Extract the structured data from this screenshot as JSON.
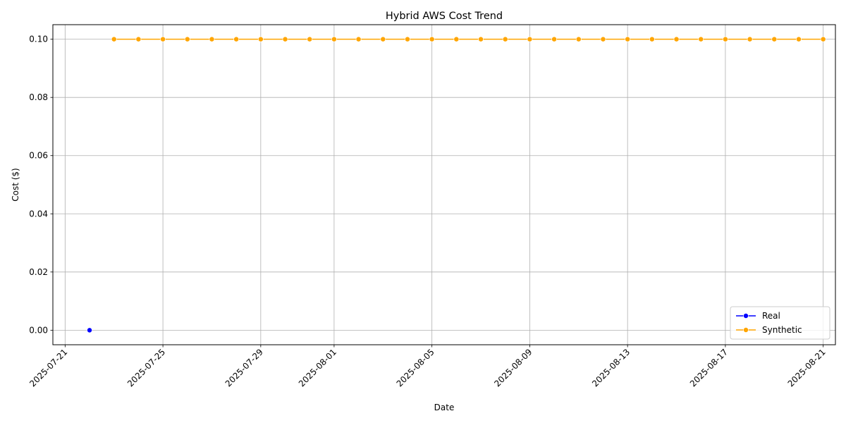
{
  "chart_data": {
    "type": "line",
    "title": "Hybrid AWS Cost Trend",
    "xlabel": "Date",
    "ylabel": "Cost ($)",
    "grid": true,
    "legend_position": "lower-right",
    "xlim": [
      "2025-07-20T12:00",
      "2025-08-21T12:00"
    ],
    "ylim": [
      -0.005,
      0.105
    ],
    "x_ticks": [
      "2025-07-21",
      "2025-07-25",
      "2025-07-29",
      "2025-08-01",
      "2025-08-05",
      "2025-08-09",
      "2025-08-13",
      "2025-08-17",
      "2025-08-21"
    ],
    "y_ticks": [
      "0.00",
      "0.02",
      "0.04",
      "0.06",
      "0.08",
      "0.10"
    ],
    "series": [
      {
        "name": "Real",
        "color": "#0000ff",
        "points": [
          {
            "x": "2025-07-22",
            "y": 0.0
          }
        ]
      },
      {
        "name": "Synthetic",
        "color": "#ffa500",
        "points": [
          {
            "x": "2025-07-23",
            "y": 0.1
          },
          {
            "x": "2025-07-24",
            "y": 0.1
          },
          {
            "x": "2025-07-25",
            "y": 0.1
          },
          {
            "x": "2025-07-26",
            "y": 0.1
          },
          {
            "x": "2025-07-27",
            "y": 0.1
          },
          {
            "x": "2025-07-28",
            "y": 0.1
          },
          {
            "x": "2025-07-29",
            "y": 0.1
          },
          {
            "x": "2025-07-30",
            "y": 0.1
          },
          {
            "x": "2025-07-31",
            "y": 0.1
          },
          {
            "x": "2025-08-01",
            "y": 0.1
          },
          {
            "x": "2025-08-02",
            "y": 0.1
          },
          {
            "x": "2025-08-03",
            "y": 0.1
          },
          {
            "x": "2025-08-04",
            "y": 0.1
          },
          {
            "x": "2025-08-05",
            "y": 0.1
          },
          {
            "x": "2025-08-06",
            "y": 0.1
          },
          {
            "x": "2025-08-07",
            "y": 0.1
          },
          {
            "x": "2025-08-08",
            "y": 0.1
          },
          {
            "x": "2025-08-09",
            "y": 0.1
          },
          {
            "x": "2025-08-10",
            "y": 0.1
          },
          {
            "x": "2025-08-11",
            "y": 0.1
          },
          {
            "x": "2025-08-12",
            "y": 0.1
          },
          {
            "x": "2025-08-13",
            "y": 0.1
          },
          {
            "x": "2025-08-14",
            "y": 0.1
          },
          {
            "x": "2025-08-15",
            "y": 0.1
          },
          {
            "x": "2025-08-16",
            "y": 0.1
          },
          {
            "x": "2025-08-17",
            "y": 0.1
          },
          {
            "x": "2025-08-18",
            "y": 0.1
          },
          {
            "x": "2025-08-19",
            "y": 0.1
          },
          {
            "x": "2025-08-20",
            "y": 0.1
          },
          {
            "x": "2025-08-21",
            "y": 0.1
          }
        ]
      }
    ]
  }
}
